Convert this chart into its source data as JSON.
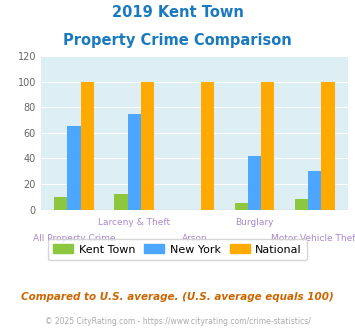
{
  "title_line1": "2019 Kent Town",
  "title_line2": "Property Crime Comparison",
  "categories": [
    "All Property Crime",
    "Larceny & Theft",
    "Arson",
    "Burglary",
    "Motor Vehicle Theft"
  ],
  "kent_town": [
    10,
    12,
    0,
    5,
    8
  ],
  "new_york": [
    65,
    75,
    0,
    42,
    30
  ],
  "national": [
    100,
    100,
    100,
    100,
    100
  ],
  "color_kent": "#8dc63f",
  "color_ny": "#4da6ff",
  "color_national": "#ffaa00",
  "color_title": "#1a7abf",
  "color_bg_plot": "#ddeef5",
  "color_bg_fig": "#ffffff",
  "color_footnote": "#cc6600",
  "color_copyright": "#aaaaaa",
  "color_x_labels": "#aa88cc",
  "ylim": [
    0,
    120
  ],
  "yticks": [
    0,
    20,
    40,
    60,
    80,
    100,
    120
  ],
  "legend_labels": [
    "Kent Town",
    "New York",
    "National"
  ],
  "footnote": "Compared to U.S. average. (U.S. average equals 100)",
  "copyright": "© 2025 CityRating.com - https://www.cityrating.com/crime-statistics/",
  "bar_width": 0.22
}
